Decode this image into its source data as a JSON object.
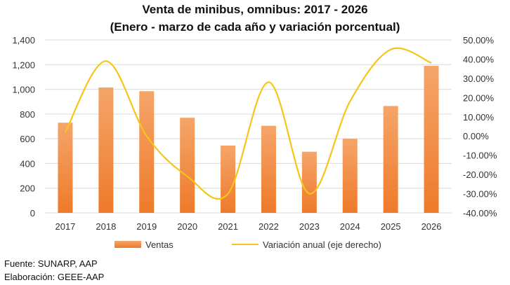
{
  "chart_data": {
    "type": "bar",
    "title": "Venta de minibus, omnibus: 2017 - 2026",
    "subtitle": "(Enero - marzo de cada año y variación porcentual)",
    "categories": [
      "2017",
      "2018",
      "2019",
      "2020",
      "2021",
      "2022",
      "2023",
      "2024",
      "2025",
      "2026"
    ],
    "series": [
      {
        "name": "Ventas",
        "type": "bar",
        "axis": "left",
        "values": [
          730,
          1015,
          985,
          770,
          545,
          705,
          495,
          600,
          865,
          1190
        ]
      },
      {
        "name": "Variación anual (eje derecho)",
        "type": "line",
        "axis": "right",
        "values": [
          0.02,
          0.39,
          0.0,
          -0.21,
          -0.3,
          0.28,
          -0.3,
          0.18,
          0.45,
          0.38
        ]
      }
    ],
    "ylim": [
      0,
      1400
    ],
    "y_ticks": [
      "0",
      "200",
      "400",
      "600",
      "800",
      "1,000",
      "1,200",
      "1,400"
    ],
    "y2lim": [
      -0.4,
      0.5
    ],
    "y2_ticks": [
      "-40.00%",
      "-30.00%",
      "-20.00%",
      "-10.00%",
      "0.00%",
      "10.00%",
      "20.00%",
      "30.00%",
      "40.00%",
      "50.00%"
    ],
    "legend_position": "bottom",
    "colors": {
      "bar": "#F07A2E",
      "bar_light": "#F5A56A",
      "line": "#F5C518"
    }
  },
  "notes": {
    "source": "Fuente: SUNARP, AAP",
    "prepared": "Elaboración: GEEE-AAP"
  }
}
